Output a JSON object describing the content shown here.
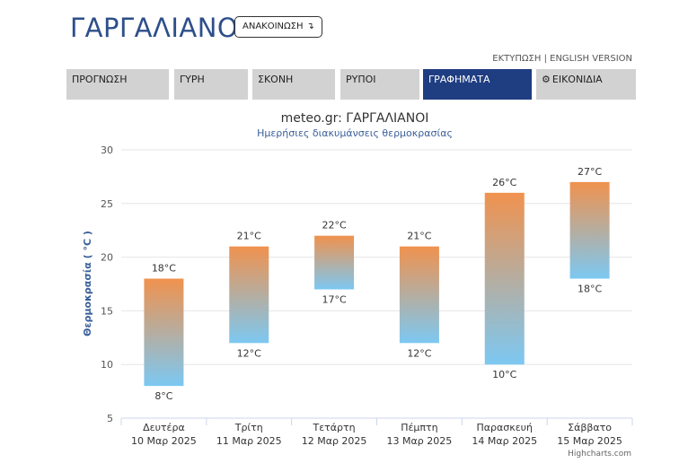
{
  "header": {
    "title": "ΓΑΡΓΑΛΙΑΝΟΙ",
    "announce_label": "ΑΝΑΚΟΙΝΩΣΗ",
    "announce_arrow": "↴",
    "print_link": "ΕΚΤΥΠΩΣΗ",
    "separator": " | ",
    "english_link": "ENGLISH VERSION"
  },
  "tabs": [
    {
      "label": "ΠΡΟΓΝΩΣΗ",
      "active": false
    },
    {
      "label": "ΓΥΡΗ",
      "active": false
    },
    {
      "label": "ΣΚΟΝΗ",
      "active": false
    },
    {
      "label": "ΡΥΠΟΙ",
      "active": false
    },
    {
      "label": "ΓΡΑΦΗΜΑΤΑ",
      "active": true
    },
    {
      "label": "ΕΙΚΟΝΙΔΙΑ",
      "active": false,
      "icon": "gear-icon"
    }
  ],
  "colors": {
    "brand": "#2d4f8a",
    "active_tab": "#1f3e82",
    "bar_top": "#f0924e",
    "bar_bottom": "#7cc8f2"
  },
  "chart_data": {
    "type": "bar",
    "subtype": "columnrange",
    "title": "meteo.gr: ΓΑΡΓΑΛΙΑΝΟΙ",
    "subtitle": "Ημερήσιες διακυμάνσεις θερμοκρασίας",
    "ylabel": "Θερμοκρασία ( °C )",
    "ylim": [
      5,
      30
    ],
    "yticks": [
      5,
      10,
      15,
      20,
      25,
      30
    ],
    "grid": true,
    "credit": "Highcharts.com",
    "unit": "°C",
    "categories": [
      {
        "day": "Δευτέρα",
        "date": "10 Μαρ 2025"
      },
      {
        "day": "Τρίτη",
        "date": "11 Μαρ 2025"
      },
      {
        "day": "Τετάρτη",
        "date": "12 Μαρ 2025"
      },
      {
        "day": "Πέμπτη",
        "date": "13 Μαρ 2025"
      },
      {
        "day": "Παρασκευή",
        "date": "14 Μαρ 2025"
      },
      {
        "day": "Σάββατο",
        "date": "15 Μαρ 2025"
      }
    ],
    "low": [
      8,
      12,
      17,
      12,
      10,
      18
    ],
    "high": [
      18,
      21,
      22,
      21,
      26,
      27
    ]
  }
}
